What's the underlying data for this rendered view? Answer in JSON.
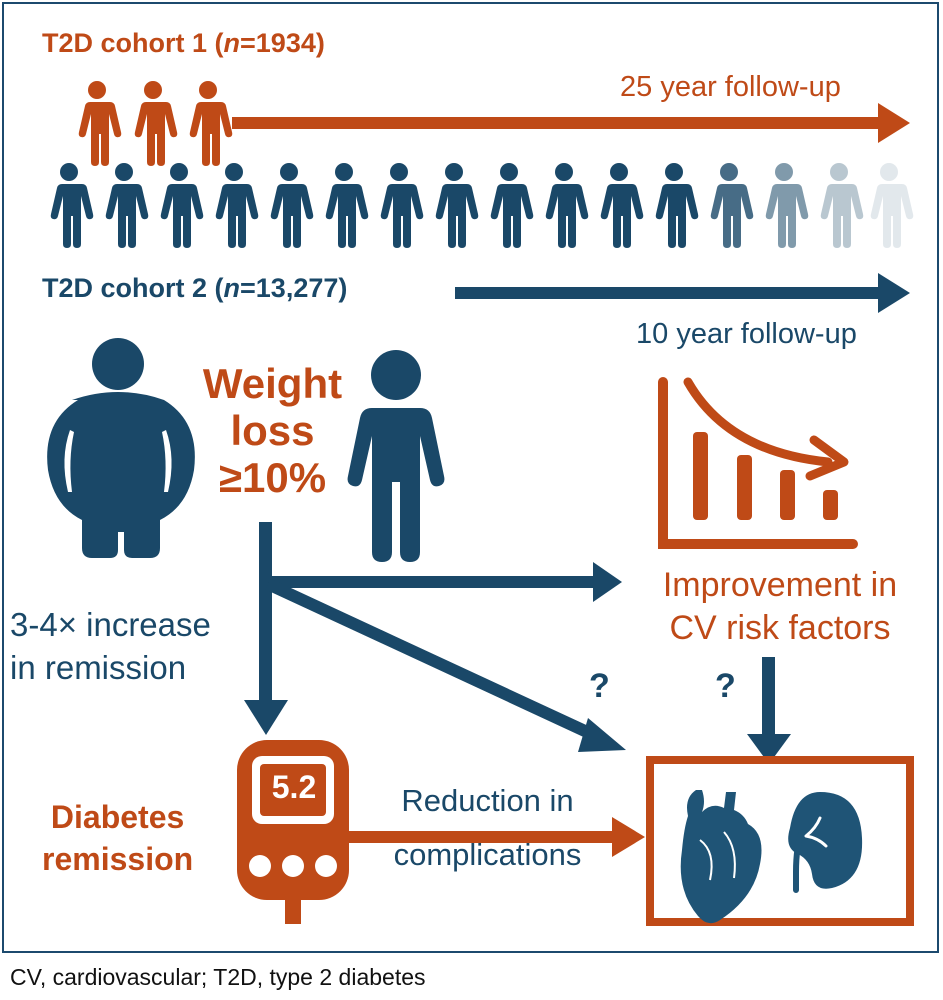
{
  "cohort1": {
    "prefix": "T2D cohort 1 (",
    "n_label": "n",
    "suffix": "=1934)",
    "followup": "25 year follow-up"
  },
  "cohort2": {
    "prefix": "T2D cohort 2 (",
    "n_label": "n",
    "suffix": "=13,277)",
    "followup": "10 year follow-up"
  },
  "weight_loss": {
    "line1": "Weight",
    "line2": "loss",
    "line3": "≥10%"
  },
  "remission_increase": {
    "line1": "3-4× increase",
    "line2": "in remission"
  },
  "cv_improvement": {
    "line1": "Improvement in",
    "line2": "CV risk factors"
  },
  "diabetes_remission": {
    "line1": "Diabetes",
    "line2": "remission"
  },
  "reduction": {
    "line1": "Reduction in",
    "line2": "complications"
  },
  "meter_value": "5.2",
  "unknown_mark": "?",
  "footnote": "CV, cardiovascular; T2D, type 2 diabetes",
  "colors": {
    "orange": "#bf4a17",
    "navy": "#1a4868"
  },
  "icons": [
    "person-icon",
    "obese-person-icon",
    "declining-bar-chart-icon",
    "glucose-meter-icon",
    "heart-icon",
    "kidney-icon"
  ]
}
